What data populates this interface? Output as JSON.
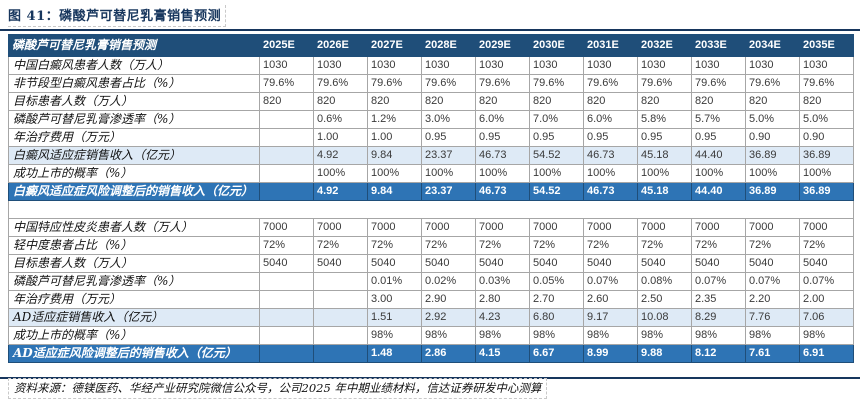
{
  "title": "图 41：磷酸芦可替尼乳膏销售预测",
  "source_note": "资料来源：德镁医药、华经产业研究院微信公众号，公司2025 年中期业绩材料，信达证券研发中心测算",
  "colors": {
    "header_bg": "#1F4E79",
    "dark_row_bg": "#2E74B5",
    "light_row_bg": "#DEEAF6",
    "title_navy": "#17365D",
    "border_gray": "#A6A6A6"
  },
  "table": {
    "header_label": "磷酸芦可替尼乳膏销售预测",
    "years": [
      "2025E",
      "2026E",
      "2027E",
      "2028E",
      "2029E",
      "2030E",
      "2031E",
      "2032E",
      "2033E",
      "2034E",
      "2035E"
    ],
    "rows": [
      {
        "label": "中国白癜风患者人数（万人）",
        "style": "normal",
        "values": [
          "1030",
          "1030",
          "1030",
          "1030",
          "1030",
          "1030",
          "1030",
          "1030",
          "1030",
          "1030",
          "1030"
        ]
      },
      {
        "label": "非节段型白癜风患者占比（%）",
        "style": "normal",
        "values": [
          "79.6%",
          "79.6%",
          "79.6%",
          "79.6%",
          "79.6%",
          "79.6%",
          "79.6%",
          "79.6%",
          "79.6%",
          "79.6%",
          "79.6%"
        ]
      },
      {
        "label": "目标患者人数（万人）",
        "style": "normal",
        "values": [
          "820",
          "820",
          "820",
          "820",
          "820",
          "820",
          "820",
          "820",
          "820",
          "820",
          "820"
        ]
      },
      {
        "label": "磷酸芦可替尼乳膏渗透率（%）",
        "style": "normal",
        "values": [
          "",
          "0.6%",
          "1.2%",
          "3.0%",
          "6.0%",
          "7.0%",
          "6.0%",
          "5.8%",
          "5.7%",
          "5.0%",
          "5.0%"
        ]
      },
      {
        "label": "年治疗费用（万元）",
        "style": "normal",
        "values": [
          "",
          "1.00",
          "1.00",
          "0.95",
          "0.95",
          "0.95",
          "0.95",
          "0.95",
          "0.95",
          "0.90",
          "0.90"
        ]
      },
      {
        "label": "白癜风适应症销售收入（亿元）",
        "style": "light",
        "values": [
          "",
          "4.92",
          "9.84",
          "23.37",
          "46.73",
          "54.52",
          "46.73",
          "45.18",
          "44.40",
          "36.89",
          "36.89"
        ]
      },
      {
        "label": "成功上市的概率（%）",
        "style": "normal",
        "values": [
          "",
          "100%",
          "100%",
          "100%",
          "100%",
          "100%",
          "100%",
          "100%",
          "100%",
          "100%",
          "100%"
        ]
      },
      {
        "label": "白癜风适应症风险调整后的销售收入（亿元）",
        "style": "dark",
        "values": [
          "",
          "4.92",
          "9.84",
          "23.37",
          "46.73",
          "54.52",
          "46.73",
          "45.18",
          "44.40",
          "36.89",
          "36.89"
        ]
      },
      {
        "label": "",
        "style": "spacer",
        "values": []
      },
      {
        "label": "中国特应性皮炎患者人数（万人）",
        "style": "normal",
        "values": [
          "7000",
          "7000",
          "7000",
          "7000",
          "7000",
          "7000",
          "7000",
          "7000",
          "7000",
          "7000",
          "7000"
        ]
      },
      {
        "label": "轻中度患者占比（%）",
        "style": "normal",
        "values": [
          "72%",
          "72%",
          "72%",
          "72%",
          "72%",
          "72%",
          "72%",
          "72%",
          "72%",
          "72%",
          "72%"
        ]
      },
      {
        "label": "目标患者人数（万人）",
        "style": "normal",
        "values": [
          "5040",
          "5040",
          "5040",
          "5040",
          "5040",
          "5040",
          "5040",
          "5040",
          "5040",
          "5040",
          "5040"
        ]
      },
      {
        "label": "磷酸芦可替尼乳膏渗透率（%）",
        "style": "normal",
        "values": [
          "",
          "",
          "0.01%",
          "0.02%",
          "0.03%",
          "0.05%",
          "0.07%",
          "0.08%",
          "0.07%",
          "0.07%",
          "0.07%"
        ]
      },
      {
        "label": "年治疗费用（万元）",
        "style": "normal",
        "values": [
          "",
          "",
          "3.00",
          "2.90",
          "2.80",
          "2.70",
          "2.60",
          "2.50",
          "2.35",
          "2.20",
          "2.00"
        ]
      },
      {
        "label": "AD适应症销售收入（亿元）",
        "style": "light",
        "values": [
          "",
          "",
          "1.51",
          "2.92",
          "4.23",
          "6.80",
          "9.17",
          "10.08",
          "8.29",
          "7.76",
          "7.06"
        ]
      },
      {
        "label": "成功上市的概率（%）",
        "style": "normal",
        "values": [
          "",
          "",
          "98%",
          "98%",
          "98%",
          "98%",
          "98%",
          "98%",
          "98%",
          "98%",
          "98%"
        ]
      },
      {
        "label": "AD适应症风险调整后的销售收入（亿元）",
        "style": "dark",
        "values": [
          "",
          "",
          "1.48",
          "2.86",
          "4.15",
          "6.67",
          "8.99",
          "9.88",
          "8.12",
          "7.61",
          "6.91"
        ]
      }
    ]
  }
}
